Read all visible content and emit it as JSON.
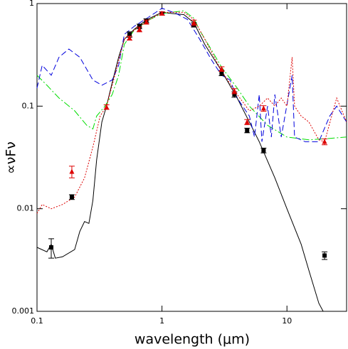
{
  "chart_data": {
    "type": "line",
    "xlabel": "wavelength (μm)",
    "ylabel": "∝νFν",
    "xlog": true,
    "ylog": true,
    "xlim": [
      0.1,
      30
    ],
    "ylim": [
      0.001,
      1
    ],
    "xticks": [
      0.1,
      1,
      10
    ],
    "yticks": [
      0.001,
      0.01,
      0.1,
      1
    ],
    "series": [
      {
        "color": "#000000",
        "dash": "",
        "x": [
          0.1,
          0.12,
          0.13,
          0.14,
          0.16,
          0.2,
          0.22,
          0.24,
          0.26,
          0.28,
          0.3,
          0.33,
          0.36,
          0.4,
          0.45,
          0.5,
          0.6,
          0.7,
          0.8,
          1.0,
          1.2,
          1.5,
          1.8,
          2.2,
          3,
          4,
          5,
          6,
          8,
          10,
          13,
          15,
          18,
          19.5
        ],
        "values": [
          0.0042,
          0.0038,
          0.0045,
          0.0033,
          0.0034,
          0.004,
          0.006,
          0.0075,
          0.0072,
          0.012,
          0.03,
          0.07,
          0.1,
          0.17,
          0.3,
          0.45,
          0.56,
          0.65,
          0.72,
          0.82,
          0.8,
          0.78,
          0.65,
          0.4,
          0.22,
          0.12,
          0.07,
          0.045,
          0.02,
          0.01,
          0.0045,
          0.0025,
          0.0012,
          0.001
        ]
      },
      {
        "color": "#00dd00",
        "dash": "10 3 2 3",
        "x": [
          0.1,
          0.12,
          0.15,
          0.2,
          0.25,
          0.28,
          0.3,
          0.35,
          0.4,
          0.45,
          0.5,
          0.6,
          0.8,
          1,
          1.5,
          1.8,
          2,
          2.5,
          3,
          4,
          5,
          7,
          10,
          15,
          20,
          30
        ],
        "values": [
          0.2,
          0.16,
          0.12,
          0.09,
          0.065,
          0.06,
          0.08,
          0.1,
          0.13,
          0.2,
          0.4,
          0.55,
          0.7,
          0.8,
          0.85,
          0.72,
          0.55,
          0.35,
          0.24,
          0.15,
          0.1,
          0.065,
          0.05,
          0.047,
          0.048,
          0.05
        ]
      },
      {
        "color": "#0000dd",
        "dash": "8 4",
        "x": [
          0.1,
          0.11,
          0.13,
          0.15,
          0.18,
          0.22,
          0.28,
          0.33,
          0.4,
          0.45,
          0.5,
          0.6,
          0.8,
          1,
          1.3,
          1.6,
          2,
          2.5,
          3,
          3.5,
          4,
          5,
          5.5,
          6,
          6.3,
          7,
          7.5,
          8,
          9,
          11,
          11.5,
          14,
          18,
          22,
          25,
          30
        ],
        "values": [
          0.15,
          0.25,
          0.2,
          0.3,
          0.36,
          0.3,
          0.18,
          0.16,
          0.18,
          0.25,
          0.5,
          0.6,
          0.75,
          0.9,
          0.8,
          0.7,
          0.45,
          0.28,
          0.2,
          0.18,
          0.12,
          0.08,
          0.05,
          0.13,
          0.045,
          0.1,
          0.05,
          0.13,
          0.05,
          0.2,
          0.05,
          0.045,
          0.045,
          0.08,
          0.1,
          0.07
        ]
      },
      {
        "color": "#dd0000",
        "dash": "2 2",
        "x": [
          0.1,
          0.11,
          0.13,
          0.16,
          0.2,
          0.24,
          0.28,
          0.32,
          0.36,
          0.4,
          0.5,
          0.6,
          0.8,
          1,
          1.5,
          1.8,
          2.2,
          3,
          4,
          5,
          6,
          7,
          8,
          9,
          10,
          11,
          11.5,
          13,
          15,
          18,
          20,
          25,
          30
        ],
        "values": [
          0.009,
          0.011,
          0.01,
          0.011,
          0.013,
          0.02,
          0.04,
          0.08,
          0.1,
          0.16,
          0.45,
          0.55,
          0.7,
          0.82,
          0.82,
          0.7,
          0.45,
          0.22,
          0.13,
          0.09,
          0.1,
          0.12,
          0.1,
          0.12,
          0.1,
          0.3,
          0.1,
          0.08,
          0.07,
          0.047,
          0.045,
          0.12,
          0.07
        ]
      }
    ],
    "points": [
      {
        "marker": "square",
        "color": "#000000",
        "x": [
          0.13,
          0.19,
          0.55,
          0.66,
          0.75,
          1.0,
          1.8,
          3.0,
          3.8,
          4.8,
          6.5,
          20
        ],
        "values": [
          0.0042,
          0.013,
          0.5,
          0.6,
          0.68,
          0.8,
          0.62,
          0.21,
          0.13,
          0.058,
          0.037,
          0.0035
        ],
        "errors": [
          0.0009,
          0.0007,
          0.03,
          0.03,
          0.03,
          0.03,
          0.03,
          0.012,
          0.008,
          0.003,
          0.002,
          0.0003
        ]
      },
      {
        "marker": "triangle",
        "color": "#dd0000",
        "x": [
          0.19,
          0.36,
          0.55,
          0.66,
          0.75,
          1.0,
          1.8,
          3.0,
          3.8,
          4.8,
          6.5,
          20
        ],
        "values": [
          0.023,
          0.098,
          0.46,
          0.56,
          0.66,
          0.8,
          0.65,
          0.23,
          0.14,
          0.07,
          0.095,
          0.045
        ],
        "errors": [
          0.003,
          0.005,
          0.02,
          0.03,
          0.03,
          0.03,
          0.04,
          0.012,
          0.008,
          0.004,
          0.006,
          0.003
        ]
      }
    ]
  }
}
